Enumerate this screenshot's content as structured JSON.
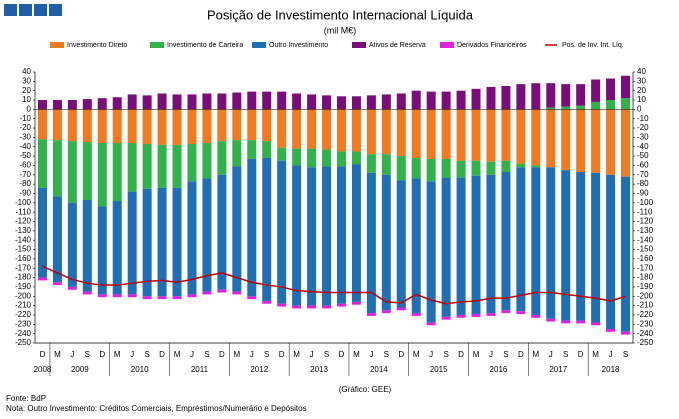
{
  "chart_data": {
    "type": "bar",
    "stacked": true,
    "title": "Posição de Investimento Internacional Líquida",
    "subtitle": "(mil M€)",
    "credit": "(Gráfico: GEE)",
    "source": "Fonte: BdP",
    "note": "Nota: Outro Investimento:  Créditos Comerciais, Empréstimos/Numerário  e Depósitos",
    "categories": [
      "D",
      "M",
      "J",
      "S",
      "D",
      "M",
      "J",
      "S",
      "D",
      "M",
      "J",
      "S",
      "D",
      "M",
      "J",
      "S",
      "D",
      "M",
      "J",
      "S",
      "D",
      "M",
      "J",
      "S",
      "D",
      "M",
      "J",
      "S",
      "D",
      "M",
      "J",
      "S",
      "D",
      "M",
      "J",
      "S",
      "D",
      "M",
      "J",
      "S"
    ],
    "years": [
      "2008",
      "2009",
      "2010",
      "2011",
      "2012",
      "2013",
      "2014",
      "2015",
      "2016",
      "2017",
      "2018"
    ],
    "ylim": [
      -250,
      40
    ],
    "yticks": [
      -250,
      -240,
      -230,
      -220,
      -210,
      -200,
      -190,
      -180,
      -170,
      -160,
      -150,
      -140,
      -130,
      -120,
      -110,
      -100,
      -90,
      -80,
      -70,
      -60,
      -50,
      -40,
      -30,
      -20,
      -10,
      0,
      10,
      20,
      30,
      40
    ],
    "series": [
      {
        "name": "Investimento Direto",
        "color": "#f47a20",
        "values": [
          -32,
          -33,
          -34,
          -35,
          -36,
          -36,
          -36,
          -37,
          -38,
          -38,
          -37,
          -36,
          -34,
          -33,
          -33,
          -34,
          -41,
          -42,
          -42,
          -43,
          -45,
          -45,
          -48,
          -48,
          -50,
          -52,
          -53,
          -53,
          -55,
          -55,
          -56,
          -55,
          -58,
          -60,
          -62,
          -65,
          -67,
          -68,
          -70,
          -72
        ]
      },
      {
        "name": "Investimento de Carteira",
        "color": "#2fb34a",
        "values": [
          -52,
          -60,
          -66,
          -62,
          -68,
          -62,
          -52,
          -48,
          -46,
          -46,
          -40,
          -38,
          -36,
          -28,
          -20,
          -18,
          -14,
          -18,
          -20,
          -18,
          -16,
          -14,
          -20,
          -22,
          -26,
          -22,
          -24,
          -20,
          -18,
          -16,
          -14,
          -12,
          -4,
          -2,
          2,
          3,
          4,
          8,
          10,
          12
        ]
      },
      {
        "name": "Outro Investimento",
        "color": "#1f6fb7",
        "values": [
          -96,
          -92,
          -90,
          -98,
          -94,
          -100,
          -110,
          -115,
          -116,
          -116,
          -121,
          -121,
          -123,
          -134,
          -147,
          -153,
          -153,
          -150,
          -148,
          -149,
          -147,
          -147,
          -150,
          -145,
          -136,
          -144,
          -151,
          -149,
          -147,
          -148,
          -148,
          -148,
          -154,
          -158,
          -162,
          -161,
          -159,
          -160,
          -165,
          -166
        ]
      },
      {
        "name": "Ativos de Reserva",
        "color": "#7b0c7b",
        "values": [
          10,
          10,
          10,
          11,
          12,
          13,
          16,
          15,
          17,
          16,
          16,
          17,
          17,
          18,
          19,
          19,
          19,
          17,
          16,
          15,
          14,
          14,
          15,
          16,
          17,
          20,
          19,
          19,
          20,
          22,
          24,
          25,
          27,
          28,
          26,
          24,
          23,
          24,
          23,
          24
        ]
      },
      {
        "name": "Derivados Financeiros",
        "color": "#e020e0",
        "values": [
          -3,
          -3,
          -3,
          -3,
          -3,
          -3,
          -3,
          -3,
          -3,
          -3,
          -3,
          -3,
          -3,
          -3,
          -3,
          -3,
          -3,
          -3,
          -3,
          -3,
          -3,
          -3,
          -3,
          -3,
          -3,
          -3,
          -3,
          -3,
          -3,
          -3,
          -3,
          -3,
          -3,
          -3,
          -3,
          -3,
          -3,
          -3,
          -3,
          -3
        ]
      },
      {
        "name": "Pos. de Inv. Int. Líq.",
        "color": "#c00000",
        "type": "line",
        "values": [
          -168,
          -175,
          -182,
          -186,
          -188,
          -188,
          -186,
          -184,
          -183,
          -185,
          -182,
          -178,
          -175,
          -180,
          -185,
          -188,
          -190,
          -194,
          -195,
          -196,
          -196,
          -196,
          -196,
          -206,
          -207,
          -198,
          -204,
          -208,
          -206,
          -205,
          -202,
          -202,
          -199,
          -196,
          -196,
          -198,
          -200,
          -202,
          -205,
          -200
        ]
      }
    ]
  }
}
